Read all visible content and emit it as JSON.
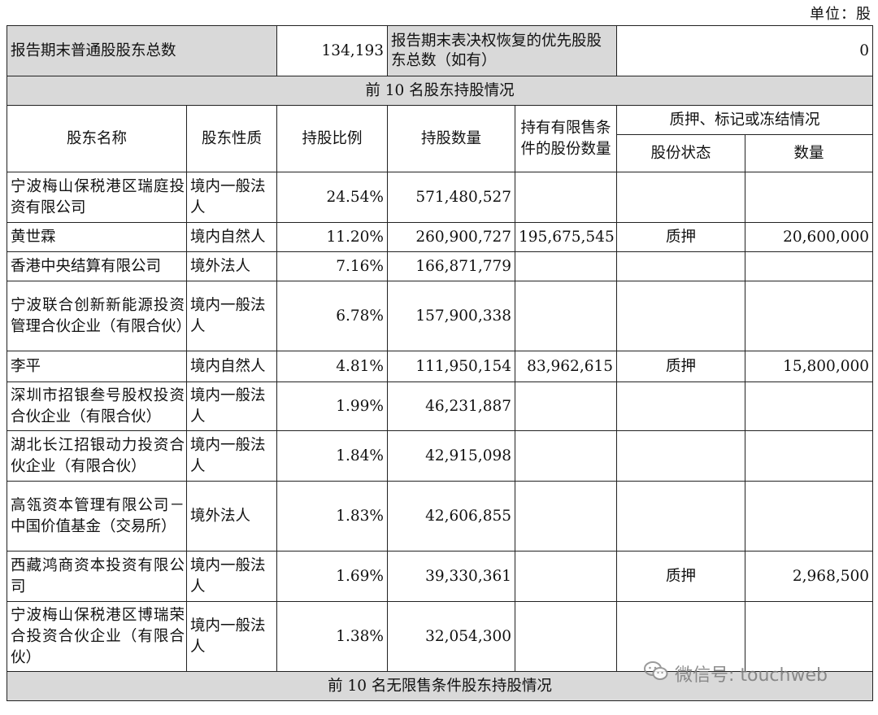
{
  "unit": "单位：股",
  "summary": {
    "common_label": "报告期末普通股股东总数",
    "common_value": "134,193",
    "preferred_label": "报告期末表决权恢复的优先股股东总数（如有）",
    "preferred_value": "0"
  },
  "section_title": "前 10 名股东持股情况",
  "headers": {
    "name": "股东名称",
    "nature": "股东性质",
    "ratio": "持股比例",
    "quantity": "持股数量",
    "restricted": "持有有限售条件的股份数量",
    "pledge_group": "质押、标记或冻结情况",
    "pledge_status": "股份状态",
    "pledge_quantity": "数量"
  },
  "rows": [
    {
      "name": "宁波梅山保税港区瑞庭投资有限公司",
      "nature": "境内一般法人",
      "ratio": "24.54%",
      "quantity": "571,480,527",
      "restricted": "",
      "status": "",
      "pledged": ""
    },
    {
      "name": "黄世霖",
      "nature": "境内自然人",
      "ratio": "11.20%",
      "quantity": "260,900,727",
      "restricted": "195,675,545",
      "status": "质押",
      "pledged": "20,600,000"
    },
    {
      "name": "香港中央结算有限公司",
      "nature": "境外法人",
      "ratio": "7.16%",
      "quantity": "166,871,779",
      "restricted": "",
      "status": "",
      "pledged": ""
    },
    {
      "name": "宁波联合创新新能源投资管理合伙企业（有限合伙）",
      "nature": "境内一般法人",
      "ratio": "6.78%",
      "quantity": "157,900,338",
      "restricted": "",
      "status": "",
      "pledged": ""
    },
    {
      "name": "李平",
      "nature": "境内自然人",
      "ratio": "4.81%",
      "quantity": "111,950,154",
      "restricted": "83,962,615",
      "status": "质押",
      "pledged": "15,800,000"
    },
    {
      "name": "深圳市招银叁号股权投资合伙企业（有限合伙）",
      "nature": "境内一般法人",
      "ratio": "1.99%",
      "quantity": "46,231,887",
      "restricted": "",
      "status": "",
      "pledged": ""
    },
    {
      "name": "湖北长江招银动力投资合伙企业（有限合伙）",
      "nature": "境内一般法人",
      "ratio": "1.84%",
      "quantity": "42,915,098",
      "restricted": "",
      "status": "",
      "pledged": ""
    },
    {
      "name": "高瓴资本管理有限公司－中国价值基金（交易所）",
      "nature": "境外法人",
      "ratio": "1.83%",
      "quantity": "42,606,855",
      "restricted": "",
      "status": "",
      "pledged": ""
    },
    {
      "name": "西藏鸿商资本投资有限公司",
      "nature": "境内一般法人",
      "ratio": "1.69%",
      "quantity": "39,330,361",
      "restricted": "",
      "status": "质押",
      "pledged": "2,968,500"
    },
    {
      "name": "宁波梅山保税港区博瑞荣合投资合伙企业（有限合伙）",
      "nature": "境内一般法人",
      "ratio": "1.38%",
      "quantity": "32,054,300",
      "restricted": "",
      "status": "",
      "pledged": ""
    }
  ],
  "footer_title": "前 10 名无限售条件股东持股情况",
  "watermark": "微信号: touchweb",
  "watermark_icon": "wechat-icon"
}
